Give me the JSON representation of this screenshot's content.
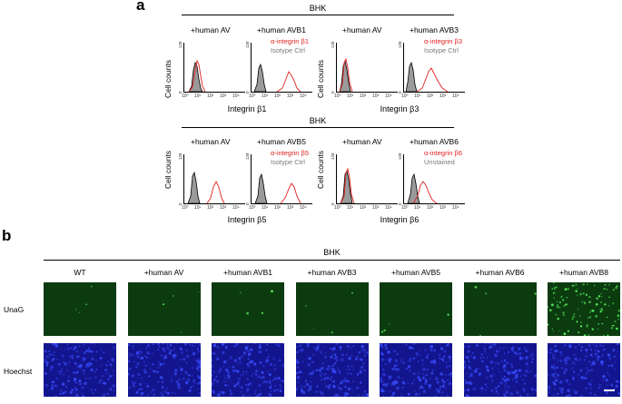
{
  "panel_a": {
    "letter": "a",
    "cell_line": "BHK",
    "y_label": "Cell counts",
    "y_max": "128",
    "y_min": "0",
    "x_ticks": [
      "10⁰",
      "10¹",
      "10²",
      "10³",
      "10⁴"
    ],
    "groups": [
      {
        "x_label": "Integrin β1",
        "left_title": "+human AV",
        "right_title": "+human AVB1",
        "legend_red": "α-integrin β1",
        "legend_gray": "Isotype Ctrl"
      },
      {
        "x_label": "Integrin β3",
        "left_title": "+human AV",
        "right_title": "+human AVB3",
        "legend_red": "α-integrin β3",
        "legend_gray": "Isotype Ctrl"
      },
      {
        "x_label": "Integrin β5",
        "left_title": "+human AV",
        "right_title": "+human AVB5",
        "legend_red": "α-integrin β5",
        "legend_gray": "Isotype Ctrl"
      },
      {
        "x_label": "Integrin β6",
        "left_title": "+human AV",
        "right_title": "+human AVB6",
        "legend_red": "α-integrin β6",
        "legend_gray": "Unstained"
      }
    ],
    "colors": {
      "red": "#e02020",
      "gray_fill": "#9a9a9a",
      "black": "#000000"
    }
  },
  "panel_b": {
    "letter": "b",
    "cell_line": "BHK",
    "columns": [
      "WT",
      "+human AV",
      "+human AVB1",
      "+human AVB3",
      "+human AVB5",
      "+human AVB6",
      "+human AVB8"
    ],
    "rows": [
      "UnaG",
      "Hoechst"
    ],
    "colors": {
      "unag": "#0c3b10",
      "hoechst": "#13158f"
    }
  }
}
